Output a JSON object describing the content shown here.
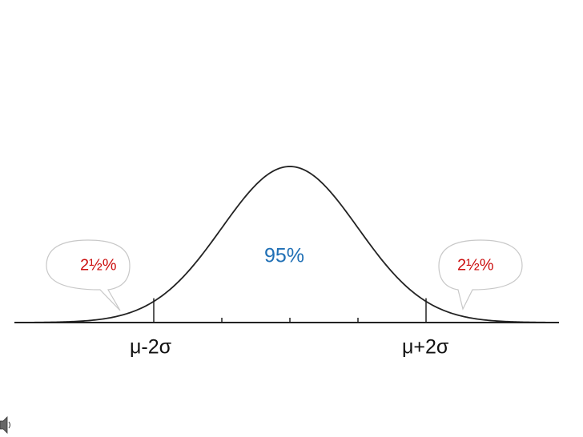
{
  "labels": {
    "left_tail": "2½%",
    "center": "95%",
    "right_tail": "2½%"
  },
  "axis_labels": [
    "μ-2σ",
    "μ+2σ"
  ]
}
